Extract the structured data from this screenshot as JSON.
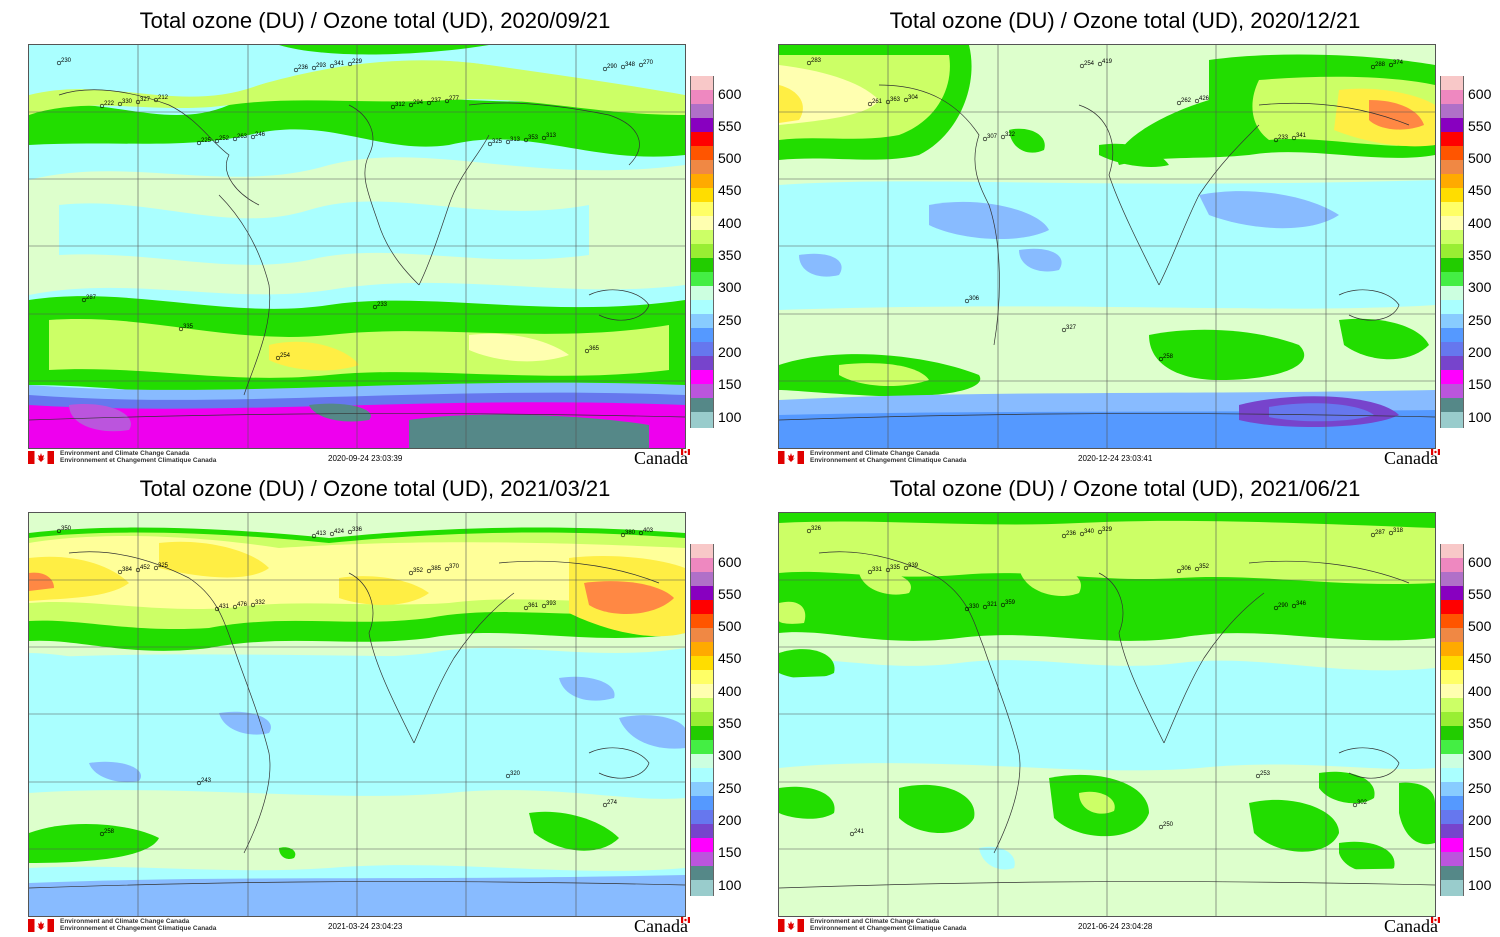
{
  "panels": [
    {
      "title": "Total ozone (DU) / Ozone total (UD), 2020/09/21",
      "timestamp": "2020-09-24 23:03:39",
      "stations": [
        "230",
        "212",
        "246",
        "229",
        "277",
        "313",
        "270",
        "327",
        "263",
        "341",
        "237",
        "353",
        "348",
        "330",
        "252",
        "293",
        "294",
        "313",
        "290",
        "222",
        "225",
        "236",
        "312",
        "325",
        "365",
        "287",
        "335",
        "254",
        "233"
      ]
    },
    {
      "title": "Total ozone (DU) / Ozone total (UD), 2020/12/21",
      "timestamp": "2020-12-24 23:03:41",
      "stations": [
        "283",
        "304",
        "322",
        "419",
        "426",
        "341",
        "374",
        "363",
        "307",
        "254",
        "262",
        "233",
        "288",
        "261",
        "306",
        "327",
        "258"
      ]
    },
    {
      "title": "Total ozone (DU) / Ozone total (UD), 2021/03/21",
      "timestamp": "2021-03-24 23:04:23",
      "stations": [
        "350",
        "325",
        "332",
        "336",
        "370",
        "393",
        "403",
        "452",
        "476",
        "424",
        "385",
        "361",
        "380",
        "384",
        "431",
        "413",
        "352",
        "320",
        "274",
        "258",
        "243"
      ]
    },
    {
      "title": "Total ozone (DU) / Ozone total (UD), 2021/06/21",
      "timestamp": "2021-06-24 23:04:28",
      "stations": [
        "326",
        "339",
        "359",
        "329",
        "352",
        "346",
        "318",
        "335",
        "321",
        "340",
        "306",
        "290",
        "287",
        "331",
        "330",
        "236",
        "250",
        "253",
        "302",
        "241"
      ]
    }
  ],
  "legend": {
    "labels": [
      "600",
      "550",
      "500",
      "450",
      "400",
      "350",
      "300",
      "250",
      "200",
      "150",
      "100"
    ],
    "colors": [
      "#f8c8c8",
      "#ee88c0",
      "#b070c8",
      "#8800c0",
      "#ff0000",
      "#ff5500",
      "#f08844",
      "#ffaa00",
      "#ffdd00",
      "#ffff66",
      "#ffffb0",
      "#ccff66",
      "#99ee33",
      "#22cc00",
      "#44ee44",
      "#ccffe0",
      "#aaffff",
      "#88ccff",
      "#5599ff",
      "#6677ee",
      "#7744cc",
      "#ff00ff",
      "#bb55dd",
      "#558888",
      "#99cccc",
      "#aacccc"
    ]
  },
  "agency": {
    "line1": "Environment and Climate Change Canada",
    "line2": "Environnement et Changement Climatique Canada"
  },
  "wordmark": "Canada",
  "colors": {
    "background": "#ffffff",
    "fill_light_cyan": "#aaffff",
    "fill_pale_green": "#ddffcc",
    "fill_green": "#22dd00",
    "fill_lime": "#ccff66",
    "fill_yellow": "#ffee44",
    "fill_orange": "#ff8844",
    "fill_blue": "#88bbff",
    "fill_magenta": "#ee00ee",
    "fill_teal": "#558888"
  }
}
